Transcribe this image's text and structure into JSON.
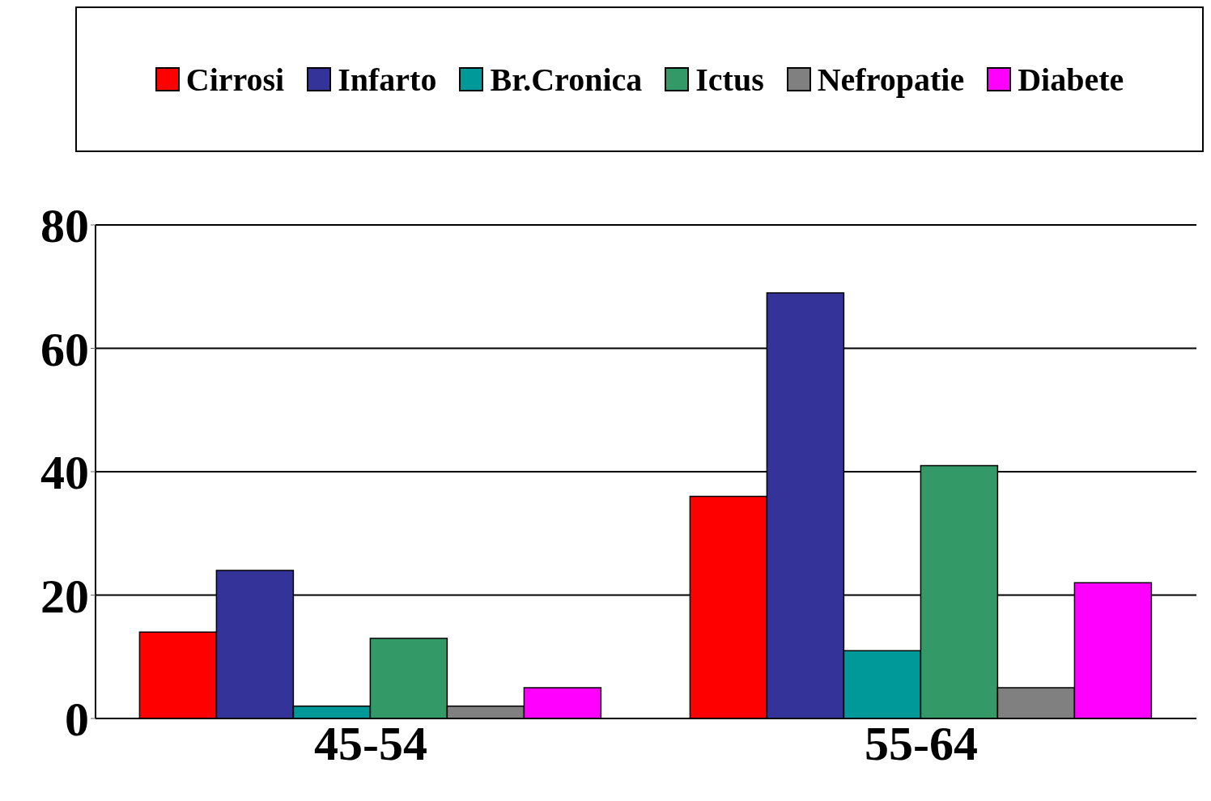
{
  "chart_data": {
    "type": "bar",
    "categories": [
      "45-54",
      "55-64"
    ],
    "series": [
      {
        "name": "Cirrosi",
        "color": "#ff0000",
        "values": [
          14,
          36
        ]
      },
      {
        "name": "Infarto",
        "color": "#333399",
        "values": [
          24,
          69
        ]
      },
      {
        "name": "Br.Cronica",
        "color": "#009999",
        "values": [
          2,
          11
        ]
      },
      {
        "name": "Ictus",
        "color": "#339966",
        "values": [
          13,
          41
        ]
      },
      {
        "name": "Nefropatie",
        "color": "#808080",
        "values": [
          2,
          5
        ]
      },
      {
        "name": "Diabete",
        "color": "#ff00ff",
        "values": [
          5,
          22
        ]
      }
    ],
    "ylim": [
      0,
      80
    ],
    "yticks": [
      0,
      20,
      40,
      60,
      80
    ],
    "grid": "y",
    "legend": "top"
  }
}
